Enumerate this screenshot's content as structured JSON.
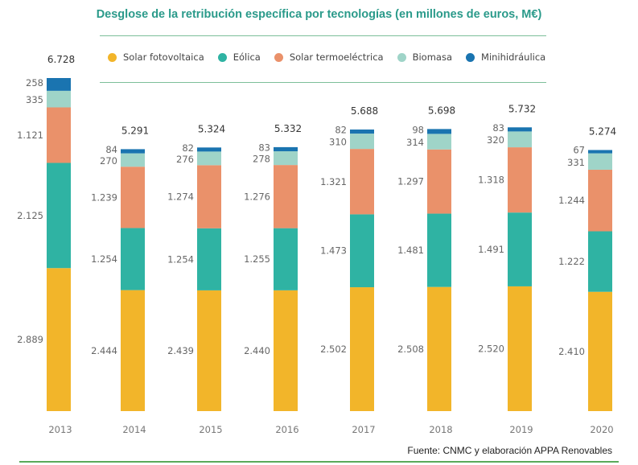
{
  "chart_data": {
    "type": "bar",
    "stacked": true,
    "title": "Desglose de la retribución específica por tecnologías (en millones de euros, M€)",
    "xlabel": "",
    "ylabel": "",
    "categories": [
      "2013",
      "2014",
      "2015",
      "2016",
      "2017",
      "2018",
      "2019",
      "2020"
    ],
    "series": [
      {
        "name": "Solar fotovoltaica",
        "color": "#f2b52a",
        "values": [
          2889,
          2444,
          2439,
          2440,
          2502,
          2508,
          2520,
          2410
        ],
        "labels": [
          "2.889",
          "2.444",
          "2.439",
          "2.440",
          "2.502",
          "2.508",
          "2.520",
          "2.410"
        ]
      },
      {
        "name": "Eólica",
        "color": "#2fb3a3",
        "values": [
          2125,
          1254,
          1254,
          1255,
          1473,
          1481,
          1491,
          1222
        ],
        "labels": [
          "2.125",
          "1.254",
          "1.254",
          "1.255",
          "1.473",
          "1.481",
          "1.491",
          "1.222"
        ]
      },
      {
        "name": "Solar termoeléctrica",
        "color": "#ea916a",
        "values": [
          1121,
          1239,
          1274,
          1276,
          1321,
          1297,
          1318,
          1244
        ],
        "labels": [
          "1.121",
          "1.239",
          "1.274",
          "1.276",
          "1.321",
          "1.297",
          "1.318",
          "1.244"
        ]
      },
      {
        "name": "Biomasa",
        "color": "#9fd4c8",
        "values": [
          335,
          270,
          276,
          278,
          310,
          314,
          320,
          331
        ],
        "labels": [
          "335",
          "270",
          "276",
          "278",
          "310",
          "314",
          "320",
          "331"
        ]
      },
      {
        "name": "Minihidráulica",
        "color": "#1a74b0",
        "values": [
          258,
          84,
          82,
          83,
          82,
          98,
          83,
          67
        ],
        "labels": [
          "258",
          "84",
          "82",
          "83",
          "82",
          "98",
          "83",
          "67"
        ]
      }
    ],
    "totals": [
      6728,
      5291,
      5324,
      5332,
      5688,
      5698,
      5732,
      5274
    ],
    "total_labels": [
      "6.728",
      "5.291",
      "5.324",
      "5.332",
      "5.688",
      "5.698",
      "5.732",
      "5.274"
    ],
    "ylim": [
      0,
      6728
    ],
    "grid": false,
    "legend_position": "top"
  },
  "title": "Desglose de la retribución específica por tecnologías (en millones de euros, M€)",
  "legend": [
    {
      "label": "Solar fotovoltaica",
      "color": "#f2b52a"
    },
    {
      "label": "Eólica",
      "color": "#2fb3a3"
    },
    {
      "label": "Solar termoeléctrica",
      "color": "#ea916a"
    },
    {
      "label": "Biomasa",
      "color": "#9fd4c8"
    },
    {
      "label": "Minihidráulica",
      "color": "#1a74b0"
    }
  ],
  "source": "Fuente: CNMC y elaboración APPA Renovables"
}
